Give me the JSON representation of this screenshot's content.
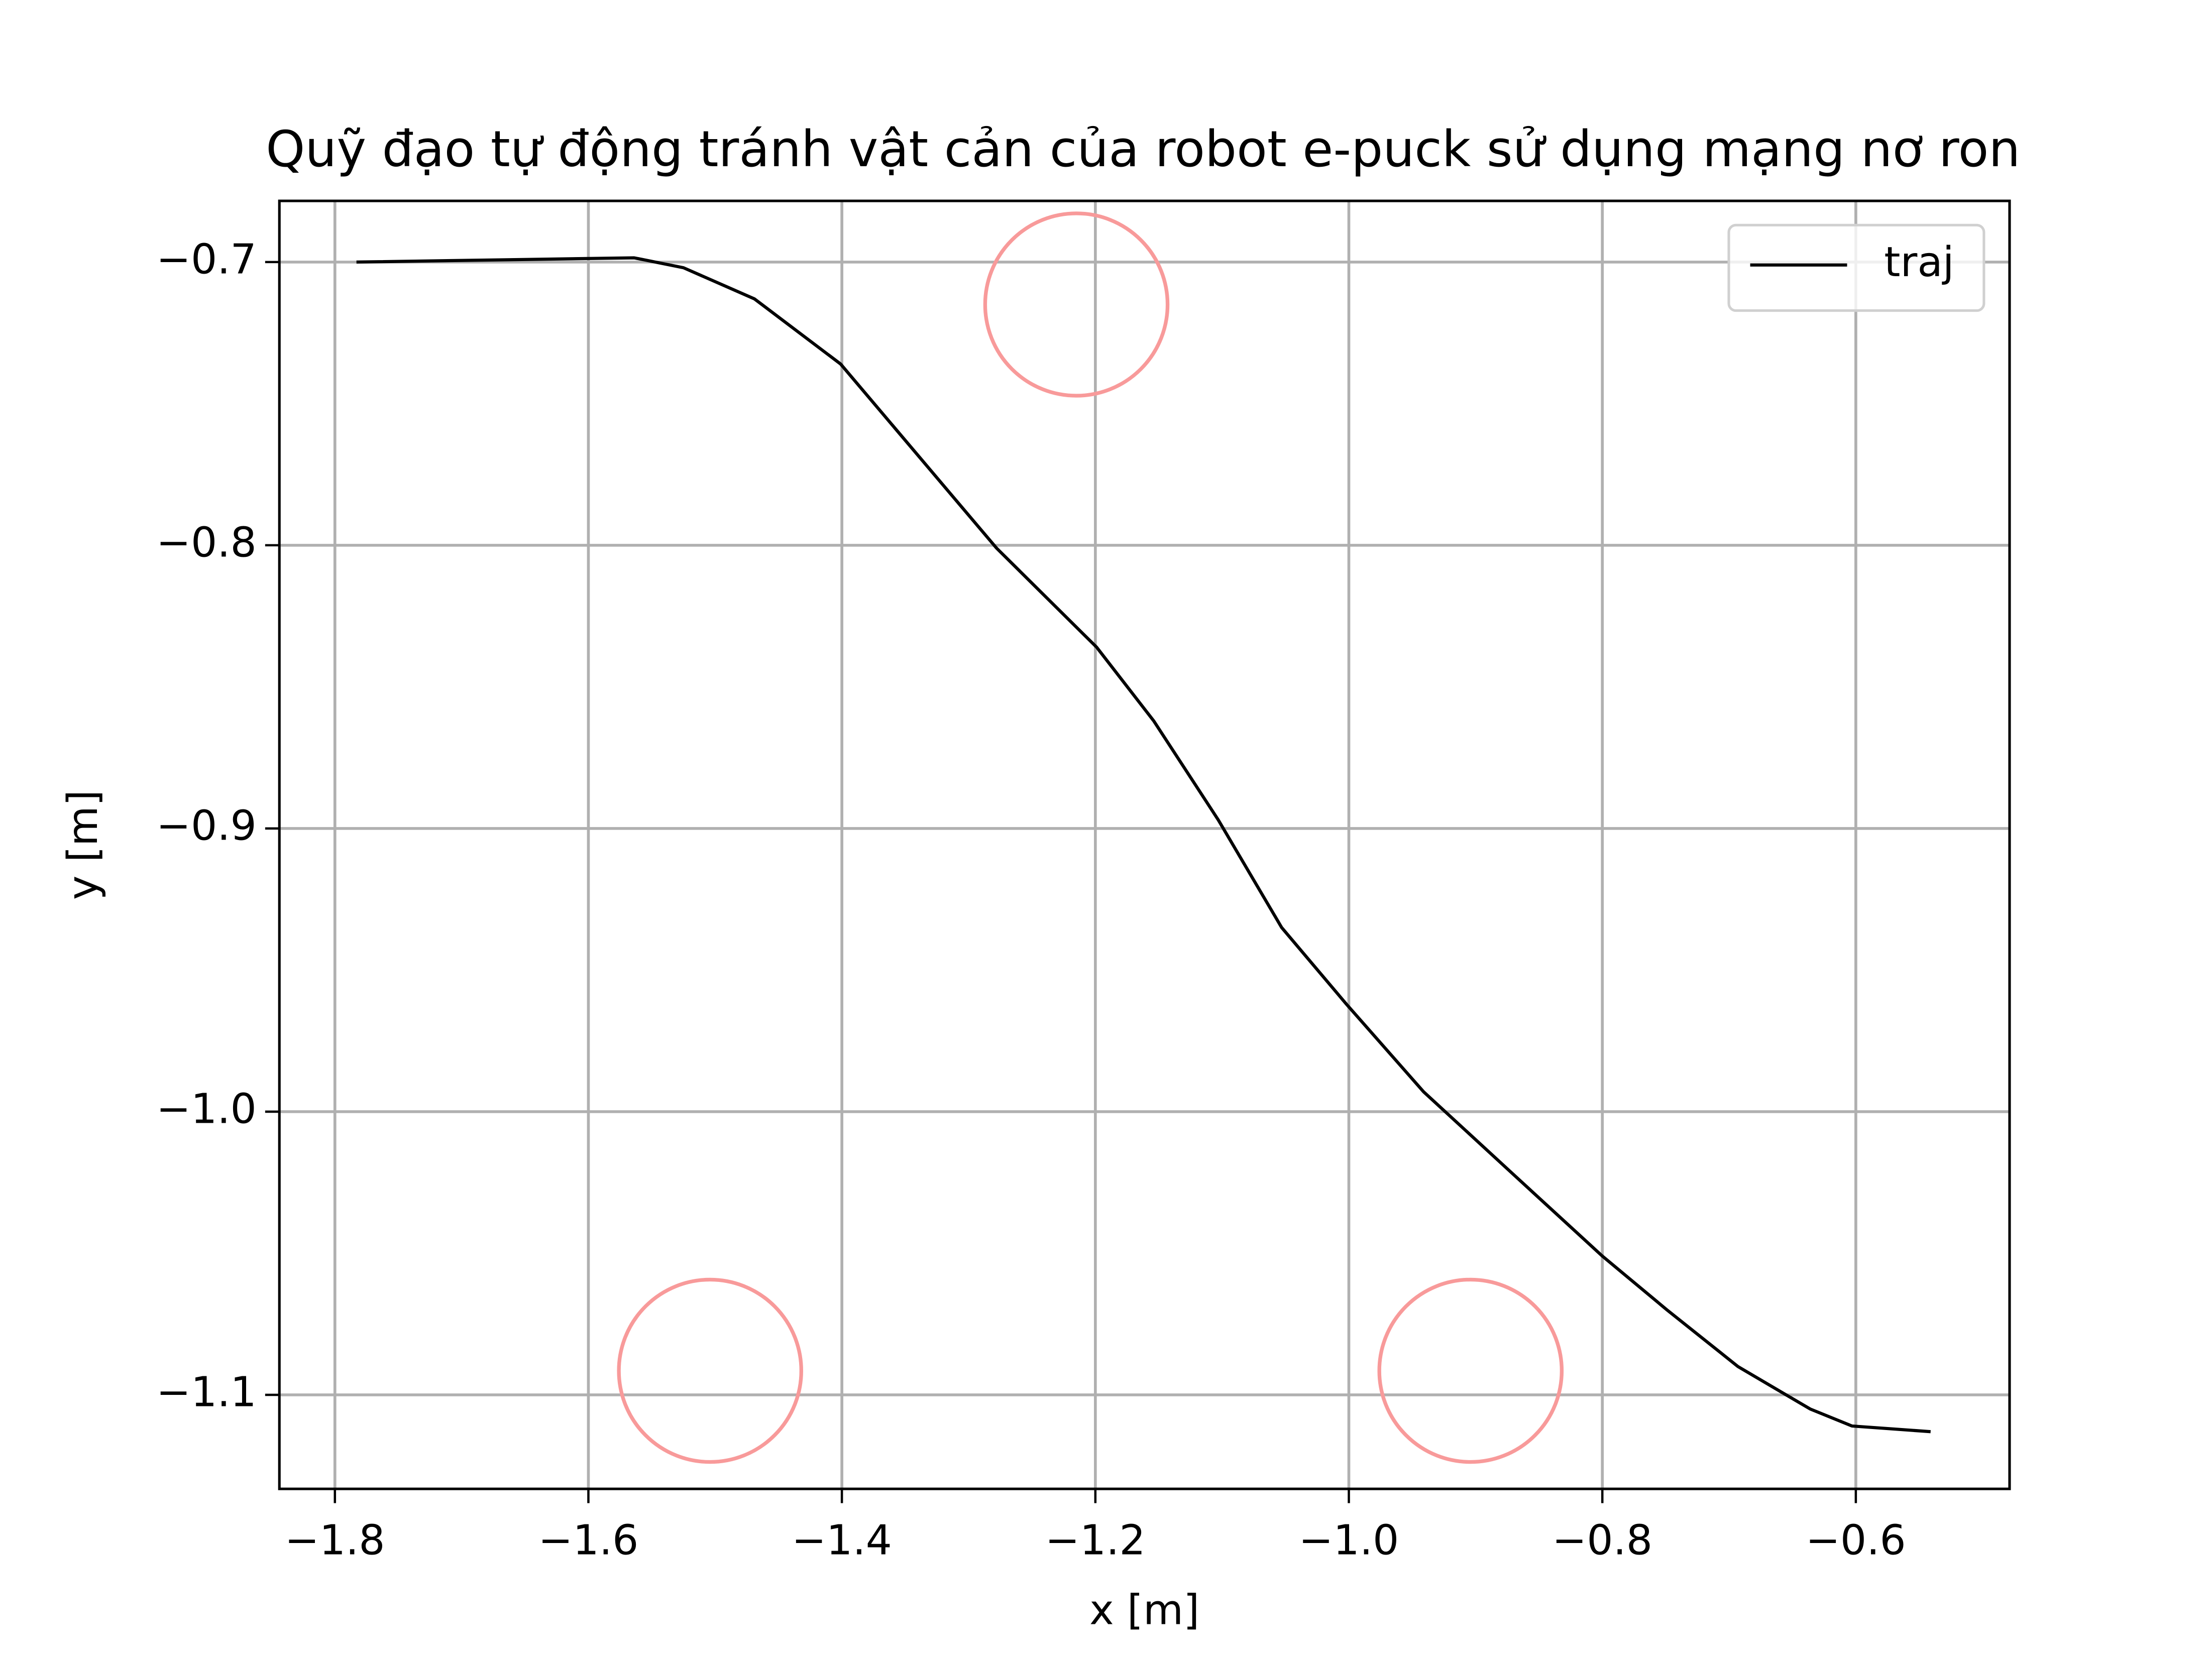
{
  "chart_data": {
    "type": "line",
    "title": "Quỹ đạo tự động tránh vật cản của robot e-puck sử dụng mạng nơ ron",
    "xlabel": "x [m]",
    "ylabel": "y [m]",
    "series": [
      {
        "name": "traj",
        "color": "#000000",
        "x": [
          -1.783,
          -1.564,
          -1.525,
          -1.469,
          -1.401,
          -1.278,
          -1.199,
          -1.154,
          -1.103,
          -1.053,
          -1.002,
          -0.941,
          -0.873,
          -0.8,
          -0.749,
          -0.693,
          -0.636,
          -0.603,
          -0.541
        ],
        "values": [
          -0.7,
          -0.6985,
          -0.702,
          -0.713,
          -0.736,
          -0.801,
          -0.836,
          -0.862,
          -0.897,
          -0.935,
          -0.962,
          -0.993,
          -1.021,
          -1.051,
          -1.07,
          -1.09,
          -1.105,
          -1.111,
          -1.113
        ]
      }
    ],
    "obstacles": {
      "color": "#f89a9a",
      "x": [
        -1.215,
        -1.504,
        -0.904
      ],
      "y": [
        -0.715,
        -1.0915,
        -1.0915
      ]
    },
    "xlim": [
      -1.8438,
      -0.4787
    ],
    "ylim": [
      -1.1332,
      -0.6784
    ],
    "xticks": [
      {
        "value": -1.8,
        "label": "−1.8"
      },
      {
        "value": -1.6,
        "label": "−1.6"
      },
      {
        "value": -1.4,
        "label": "−1.4"
      },
      {
        "value": -1.2,
        "label": "−1.2"
      },
      {
        "value": -1.0,
        "label": "−1.0"
      },
      {
        "value": -0.8,
        "label": "−0.8"
      },
      {
        "value": -0.6,
        "label": "−0.6"
      }
    ],
    "yticks": [
      {
        "value": -0.7,
        "label": "−0.7"
      },
      {
        "value": -0.8,
        "label": "−0.8"
      },
      {
        "value": -0.9,
        "label": "−0.9"
      },
      {
        "value": -1.0,
        "label": "−1.0"
      },
      {
        "value": -1.1,
        "label": "−1.1"
      }
    ],
    "grid": true,
    "legend": "upper right"
  }
}
